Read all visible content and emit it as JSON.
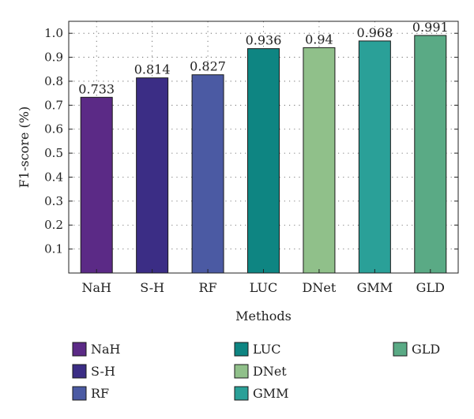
{
  "chart_data": {
    "type": "bar",
    "categories": [
      "NaH",
      "S-H",
      "RF",
      "LUC",
      "DNet",
      "GMM",
      "GLD"
    ],
    "values": [
      0.733,
      0.814,
      0.827,
      0.936,
      0.94,
      0.968,
      0.991
    ],
    "value_labels": [
      "0.733",
      "0.814",
      "0.827",
      "0.936",
      "0.94",
      "0.968",
      "0.991"
    ],
    "colors": [
      "#5b2a86",
      "#3b2d85",
      "#4b5aa3",
      "#0e8582",
      "#90c08a",
      "#2aa098",
      "#5aaa85"
    ],
    "xlabel": "Methods",
    "ylabel": "F1-score (%)",
    "ylim": [
      0,
      1.05
    ],
    "yticks": [
      0.1,
      0.2,
      0.3,
      0.4,
      0.5,
      0.6,
      0.7,
      0.8,
      0.9,
      1.0
    ],
    "ytick_labels": [
      "0.1",
      "0.2",
      "0.3",
      "0.4",
      "0.5",
      "0.6",
      "0.7",
      "0.8",
      "0.9",
      "1.0"
    ],
    "grid": true,
    "legend": {
      "position": "bottom",
      "entries": [
        "NaH",
        "S-H",
        "RF",
        "LUC",
        "DNet",
        "GMM",
        "GLD"
      ]
    }
  }
}
